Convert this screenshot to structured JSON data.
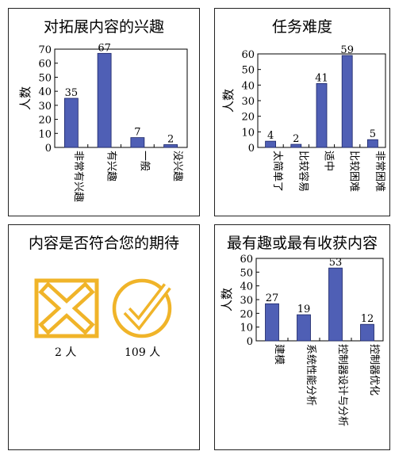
{
  "chart_data": [
    {
      "type": "bar",
      "title": "对拓展内容的兴趣",
      "ylabel": "人数",
      "categories": [
        "非常有兴趣",
        "有兴趣",
        "一般",
        "没兴趣"
      ],
      "values": [
        35,
        67,
        7,
        2
      ],
      "ylim": [
        0,
        70
      ],
      "yticks": [
        0,
        10,
        20,
        30,
        40,
        50,
        60,
        70
      ],
      "bar_color": "#4f5fb5",
      "grid": false
    },
    {
      "type": "bar",
      "title": "任务难度",
      "ylabel": "人数",
      "categories": [
        "太简单了",
        "比较容易",
        "适中",
        "比较困难",
        "非常困难"
      ],
      "values": [
        4,
        2,
        41,
        59,
        5
      ],
      "ylim": [
        0,
        60
      ],
      "yticks": [
        0,
        10,
        20,
        30,
        40,
        50,
        60
      ],
      "bar_color": "#4f5fb5",
      "grid": false
    },
    {
      "type": "table",
      "title": "内容是否符合您的期待",
      "items": [
        {
          "icon": "cross-box-icon",
          "label": "2 人",
          "value": 2,
          "color": "#f0b429"
        },
        {
          "icon": "check-circle-icon",
          "label": "109 人",
          "value": 109,
          "color": "#f0b429"
        }
      ]
    },
    {
      "type": "bar",
      "title": "最有趣或最有收获内容",
      "ylabel": "人数",
      "categories": [
        "建模",
        "系统性能分析",
        "控制器设计与分析",
        "控制器优化"
      ],
      "values": [
        27,
        19,
        53,
        12
      ],
      "ylim": [
        0,
        60
      ],
      "yticks": [
        0,
        10,
        20,
        30,
        40,
        50,
        60
      ],
      "bar_color": "#4f5fb5",
      "grid": false
    }
  ]
}
